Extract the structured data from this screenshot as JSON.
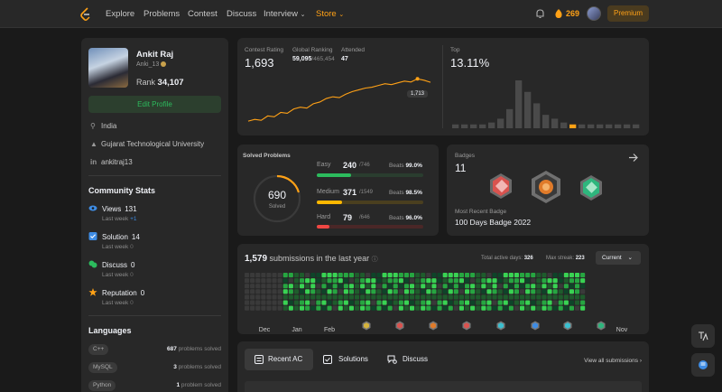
{
  "nav": {
    "items": [
      "Explore",
      "Problems",
      "Contest",
      "Discuss",
      "Interview",
      "Store"
    ],
    "coins": "269",
    "premium": "Premium"
  },
  "profile": {
    "name": "Ankit Raj",
    "handle": "Anki_13",
    "rank_label": "Rank",
    "rank": "34,107",
    "edit_label": "Edit Profile",
    "country": "India",
    "university": "Gujarat Technological University",
    "linkedin": "ankitraj13"
  },
  "community": {
    "title": "Community Stats",
    "last_week": "Last week",
    "items": [
      {
        "label": "Views",
        "value": "131",
        "delta": "+1",
        "icon": "eye-icon",
        "color": "#3e8ce4"
      },
      {
        "label": "Solution",
        "value": "14",
        "delta": "0",
        "icon": "check-square-icon",
        "color": "#3e8ce4"
      },
      {
        "label": "Discuss",
        "value": "0",
        "delta": "0",
        "icon": "chat-bubbles-icon",
        "color": "#2cbb5d"
      },
      {
        "label": "Reputation",
        "value": "0",
        "delta": "0",
        "icon": "star-icon",
        "color": "#ffa116"
      }
    ]
  },
  "languages": {
    "title": "Languages",
    "items": [
      {
        "name": "C++",
        "count": "687",
        "suffix": "problems solved"
      },
      {
        "name": "MySQL",
        "count": "3",
        "suffix": "problems solved"
      },
      {
        "name": "Python",
        "count": "1",
        "suffix": "problem solved"
      }
    ]
  },
  "contest": {
    "rating_label": "Contest Rating",
    "rating": "1,693",
    "global_label": "Global Ranking",
    "global_rank": "59,095",
    "global_total": "/465,454",
    "attended_label": "Attended",
    "attended": "47",
    "tooltip": "1,713",
    "top_label": "Top",
    "top_value": "13.11%",
    "rating_trend": [
      1470,
      1480,
      1475,
      1500,
      1495,
      1520,
      1515,
      1540,
      1550,
      1545,
      1570,
      1580,
      1600,
      1610,
      1605,
      1625,
      1640,
      1650,
      1660,
      1665,
      1675,
      1685,
      1680,
      1690,
      1700,
      1695,
      1713,
      1705,
      1693
    ],
    "histogram": [
      4,
      4,
      4,
      4,
      6,
      10,
      20,
      50,
      38,
      26,
      14,
      10,
      6,
      4,
      4,
      4,
      4,
      4,
      4,
      4,
      4
    ],
    "highlight_index": 13
  },
  "solved": {
    "title": "Solved Problems",
    "total": "690",
    "total_label": "Solved",
    "beats_label": "Beats",
    "easy": {
      "label": "Easy",
      "count": "240",
      "total": "/746",
      "beats": "99.0%",
      "fraction": 0.32,
      "color": "#2cbb5d",
      "track": "#2a3d2f"
    },
    "medium": {
      "label": "Medium",
      "count": "371",
      "total": "/1549",
      "beats": "98.5%",
      "fraction": 0.24,
      "color": "#ffb800",
      "track": "#4a3f1f"
    },
    "hard": {
      "label": "Hard",
      "count": "79",
      "total": "/646",
      "beats": "96.0%",
      "fraction": 0.12,
      "color": "#ef4743",
      "track": "#4a2727"
    }
  },
  "badges": {
    "title": "Badges",
    "count": "11",
    "recent_label": "Most Recent Badge",
    "recent": "100 Days Badge 2022",
    "items": [
      {
        "icon": "badge-red-icon",
        "color": "#d9534f"
      },
      {
        "icon": "badge-100-days-icon",
        "color": "#e07b2a"
      },
      {
        "icon": "badge-green-icon",
        "color": "#2eb67d"
      }
    ]
  },
  "submissions": {
    "count": "1,579",
    "label": "submissions in the last year",
    "active_label": "Total active days:",
    "active_days": "326",
    "streak_label": "Max streak:",
    "max_streak": "223",
    "selector": "Current",
    "months": [
      "Dec",
      "Jan",
      "Feb",
      "",
      "",
      "",
      "",
      "",
      "",
      "",
      "Nov"
    ],
    "badge_colors": [
      "#d4b23c",
      "#d9534f",
      "#e07b2a",
      "#d9534f",
      "#3bc0d0",
      "#3e8ce4",
      "#3bc0d0",
      "#2eb67d"
    ]
  },
  "tabs": {
    "items": [
      {
        "label": "Recent AC",
        "icon": "list-icon"
      },
      {
        "label": "Solutions",
        "icon": "check-box-icon"
      },
      {
        "label": "Discuss",
        "icon": "chat-icon"
      }
    ],
    "view_all": "View all submissions"
  }
}
